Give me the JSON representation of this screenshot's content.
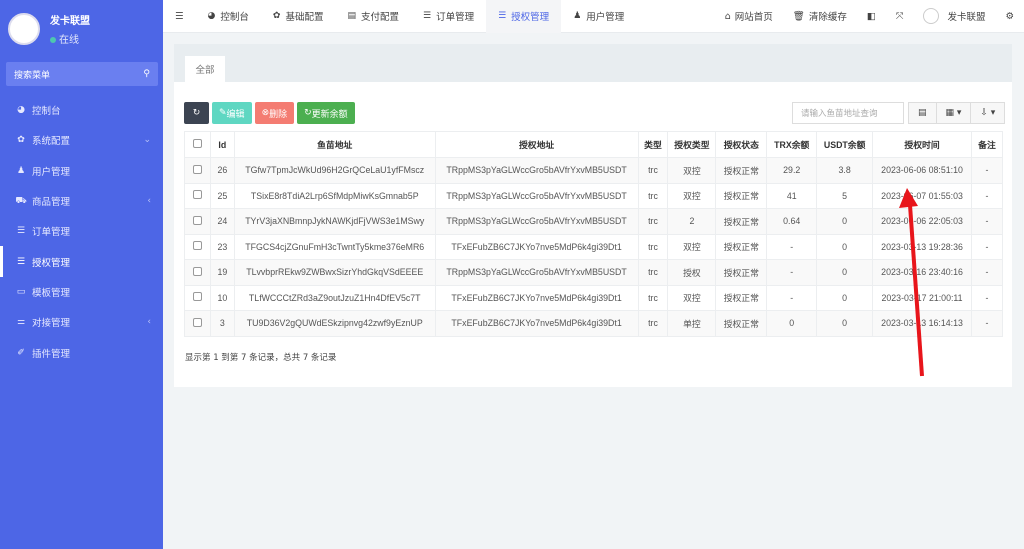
{
  "user": {
    "name": "发卡联盟",
    "status": "在线",
    "logo_text": "发卡联盟"
  },
  "sidebar": {
    "search_label": "搜索菜单",
    "items": [
      {
        "label": "控制台",
        "icon": "dashboard-icon",
        "arrow": ""
      },
      {
        "label": "系统配置",
        "icon": "gear-icon",
        "arrow": "⌄"
      },
      {
        "label": "用户管理",
        "icon": "user-icon",
        "arrow": ""
      },
      {
        "label": "商品管理",
        "icon": "cart-icon",
        "arrow": "‹"
      },
      {
        "label": "订单管理",
        "icon": "list-icon",
        "arrow": ""
      },
      {
        "label": "授权管理",
        "icon": "list-icon",
        "arrow": "",
        "active": true
      },
      {
        "label": "模板管理",
        "icon": "window-icon",
        "arrow": ""
      },
      {
        "label": "对接管理",
        "icon": "sliders-icon",
        "arrow": "‹"
      },
      {
        "label": "插件管理",
        "icon": "plug-icon",
        "arrow": ""
      }
    ]
  },
  "topnav": {
    "items": [
      {
        "label": "控制台"
      },
      {
        "label": "基础配置"
      },
      {
        "label": "支付配置"
      },
      {
        "label": "订单管理"
      },
      {
        "label": "授权管理",
        "active": true
      },
      {
        "label": "用户管理"
      }
    ],
    "right": {
      "home": "网站首页",
      "clear_cache": "清除缓存",
      "username": "发卡联盟"
    }
  },
  "tabs": [
    "全部"
  ],
  "toolbar": {
    "edit": "编辑",
    "delete": "删除",
    "update_balance": "更新余额"
  },
  "search": {
    "placeholder": "请输入鱼苗地址查询"
  },
  "table": {
    "columns": [
      "Id",
      "鱼苗地址",
      "授权地址",
      "类型",
      "授权类型",
      "授权状态",
      "TRX余额",
      "USDT余额",
      "授权时间",
      "备注"
    ],
    "rows": [
      [
        "26",
        "TGfw7TpmJcWkUd96H2GrQCeLaU1yfFMscz",
        "TRppMS3pYaGLWccGro5bAVfrYxvMB5USDT",
        "trc",
        "双控",
        "授权正常",
        "29.2",
        "3.8",
        "2023-06-06 08:51:10",
        "-"
      ],
      [
        "25",
        "TSixE8r8TdiA2Lrp6SfMdpMiwKsGmnab5P",
        "TRppMS3pYaGLWccGro5bAVfrYxvMB5USDT",
        "trc",
        "双控",
        "授权正常",
        "41",
        "5",
        "2023-06-07 01:55:03",
        "-"
      ],
      [
        "24",
        "TYrV3jaXNBmnpJykNAWKjdFjVWS3e1MSwy",
        "TRppMS3pYaGLWccGro5bAVfrYxvMB5USDT",
        "trc",
        "2",
        "授权正常",
        "0.64",
        "0",
        "2023-06-06 22:05:03",
        "-"
      ],
      [
        "23",
        "TFGCS4cjZGnuFmH3cTwntTy5kme376eMR6",
        "TFxEFubZB6C7JKYo7nve5MdP6k4gi39Dt1",
        "trc",
        "双控",
        "授权正常",
        "-",
        "0",
        "2023-03-13 19:28:36",
        "-"
      ],
      [
        "19",
        "TLvvbprREkw9ZWBwxSizrYhdGkqVSdEEEE",
        "TRppMS3pYaGLWccGro5bAVfrYxvMB5USDT",
        "trc",
        "授权",
        "授权正常",
        "-",
        "0",
        "2023-03-16 23:40:16",
        "-"
      ],
      [
        "10",
        "TLfWCCCtZRd3aZ9outJzuZ1Hn4DfEV5c7T",
        "TFxEFubZB6C7JKYo7nve5MdP6k4gi39Dt1",
        "trc",
        "双控",
        "授权正常",
        "-",
        "0",
        "2023-03-17 21:00:11",
        "-"
      ],
      [
        "3",
        "TU9D36V2gQUWdESkzipnvg42zwf9yEznUP",
        "TFxEFubZB6C7JKYo7nve5MdP6k4gi39Dt1",
        "trc",
        "单控",
        "授权正常",
        "0",
        "0",
        "2023-03-13 16:14:13",
        "-"
      ]
    ]
  },
  "pagination": {
    "summary": "显示第 1 到第 7 条记录，总共 7 条记录"
  },
  "colors": {
    "sidebar": "#4d66e6",
    "annotation_arrow": "#e8151b"
  }
}
